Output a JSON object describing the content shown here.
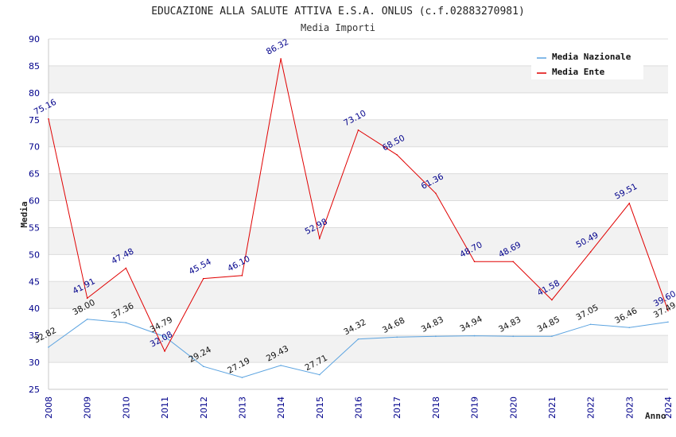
{
  "chart_data": {
    "type": "line",
    "title": "EDUCAZIONE ALLA SALUTE ATTIVA E.S.A. ONLUS (c.f.02883270981)",
    "subtitle": "Media Importi",
    "xlabel": "Anno",
    "ylabel": "Media",
    "ylim": [
      25,
      90
    ],
    "yticks": [
      25,
      30,
      35,
      40,
      45,
      50,
      55,
      60,
      65,
      70,
      75,
      80,
      85,
      90
    ],
    "x": [
      "2008",
      "2009",
      "2010",
      "2011",
      "2012",
      "2013",
      "2014",
      "2015",
      "2016",
      "2017",
      "2018",
      "2019",
      "2020",
      "2021",
      "2022",
      "2023",
      "2024"
    ],
    "grid": true,
    "legend_position": "top-right",
    "series": [
      {
        "name": "Media Nazionale",
        "color": "#5ba3e0",
        "label_color": "#111111",
        "values": [
          32.82,
          38.0,
          37.36,
          34.79,
          29.24,
          27.19,
          29.43,
          27.71,
          34.32,
          34.68,
          34.83,
          34.94,
          34.83,
          34.85,
          37.05,
          36.46,
          37.49
        ],
        "labels": [
          "32.82",
          "38.00",
          "37.36",
          "34.79",
          "29.24",
          "27.19",
          "29.43",
          "27.71",
          "34.32",
          "34.68",
          "34.83",
          "34.94",
          "34.83",
          "34.85",
          "37.05",
          "36.46",
          "37.49"
        ]
      },
      {
        "name": "Media Ente",
        "color": "#e00000",
        "label_color": "#00008b",
        "values": [
          75.16,
          41.91,
          47.48,
          32.08,
          45.54,
          46.1,
          86.32,
          52.98,
          73.1,
          68.5,
          61.36,
          48.7,
          48.69,
          41.58,
          50.49,
          59.51,
          39.6
        ],
        "labels": [
          "75.16",
          "41.91",
          "47.48",
          "32.08",
          "45.54",
          "46.10",
          "86.32",
          "52.98",
          "73.10",
          "68.50",
          "61.36",
          "48.70",
          "48.69",
          "41.58",
          "50.49",
          "59.51",
          "39.60"
        ]
      }
    ]
  }
}
